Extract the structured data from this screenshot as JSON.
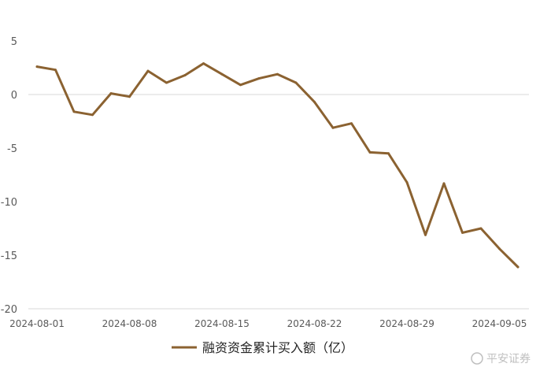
{
  "chart_data": {
    "type": "line",
    "x": [
      "2024-08-01",
      "2024-08-02",
      "2024-08-05",
      "2024-08-06",
      "2024-08-07",
      "2024-08-08",
      "2024-08-09",
      "2024-08-12",
      "2024-08-13",
      "2024-08-14",
      "2024-08-15",
      "2024-08-16",
      "2024-08-19",
      "2024-08-20",
      "2024-08-21",
      "2024-08-22",
      "2024-08-23",
      "2024-08-26",
      "2024-08-27",
      "2024-08-28",
      "2024-08-29",
      "2024-08-30",
      "2024-09-02",
      "2024-09-03",
      "2024-09-04",
      "2024-09-05",
      "2024-09-06"
    ],
    "series": [
      {
        "name": "融资资金累计买入额（亿）",
        "color": "#8B6231",
        "values": [
          2.6,
          2.3,
          -1.6,
          -1.9,
          0.1,
          -0.2,
          2.2,
          1.1,
          1.8,
          2.9,
          1.9,
          0.9,
          1.5,
          1.9,
          1.1,
          -0.7,
          -3.1,
          -2.7,
          -5.4,
          -5.5,
          -8.2,
          -13.1,
          -8.3,
          -12.9,
          -12.5,
          -14.4,
          -16.1
        ]
      }
    ],
    "x_tick_labels": [
      "2024-08-01",
      "2024-08-08",
      "2024-08-15",
      "2024-08-22",
      "2024-08-29",
      "2024-09-05"
    ],
    "y_ticks": [
      5,
      0,
      -5,
      -10,
      -15,
      -20
    ],
    "ylim": [
      -20,
      7.5
    ],
    "grid": false,
    "legend_position": "bottom"
  },
  "watermark": "平安证券"
}
